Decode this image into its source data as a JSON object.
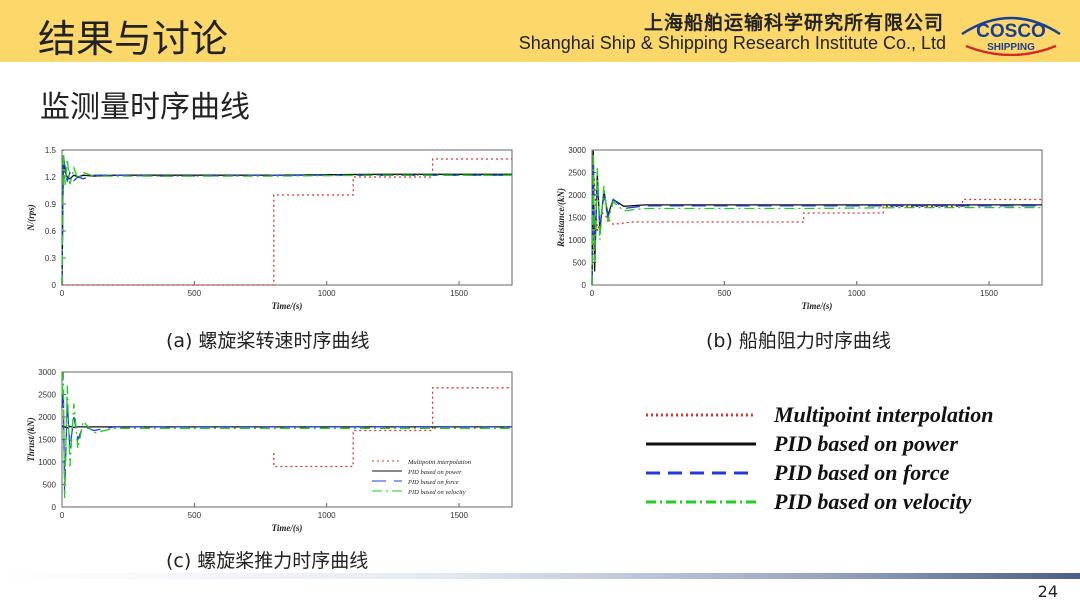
{
  "header": {
    "title": "结果与讨论",
    "org_cn": "上海船舶运输科学研究所有限公司",
    "org_en": "Shanghai Ship & Shipping Research Institute Co., Ltd",
    "logo_top": "COSCO",
    "logo_bottom": "SHIPPING"
  },
  "section_title": "监测量时序曲线",
  "captions": {
    "a": "(a) 螺旋桨转速时序曲线",
    "b": "(b) 船舶阻力时序曲线",
    "c": "(c) 螺旋桨推力时序曲线"
  },
  "legend": {
    "items": [
      {
        "label": "Multipoint interpolation",
        "color": "#e03030",
        "dash": "2,3"
      },
      {
        "label": "PID based on power",
        "color": "#111111",
        "dash": ""
      },
      {
        "label": "PID based on force",
        "color": "#2438e0",
        "dash": "14,8"
      },
      {
        "label": "PID based on velocity",
        "color": "#22cc22",
        "dash": "10,4,2,4"
      }
    ]
  },
  "page_number": "24",
  "chart_data": [
    {
      "id": "a",
      "type": "line",
      "xlabel": "Time/(s)",
      "ylabel": "N/(rps)",
      "xlim": [
        0,
        1700
      ],
      "ylim": [
        0,
        1.5
      ],
      "xticks": [
        0,
        500,
        1000,
        1500
      ],
      "yticks": [
        0,
        0.3,
        0.6,
        0.9,
        1.2,
        1.5
      ],
      "ytick_labels": [
        "0",
        "0.3",
        "0.6",
        "0.9",
        "1.2",
        "1.5"
      ],
      "show_legend": false,
      "series": [
        {
          "name": "Multipoint interpolation",
          "x": [
            0,
            800,
            800,
            1100,
            1100,
            1400,
            1400,
            1700
          ],
          "y": [
            0.0,
            0.0,
            1.0,
            1.0,
            1.2,
            1.2,
            1.4,
            1.4
          ]
        },
        {
          "name": "PID based on power",
          "x": [
            0,
            5,
            12,
            20,
            30,
            45,
            60,
            80,
            120,
            200,
            400,
            800,
            1200,
            1700
          ],
          "y": [
            0.0,
            1.35,
            1.25,
            1.2,
            1.18,
            1.22,
            1.2,
            1.22,
            1.21,
            1.22,
            1.22,
            1.22,
            1.23,
            1.23
          ]
        },
        {
          "name": "PID based on force",
          "x": [
            0,
            5,
            12,
            20,
            30,
            45,
            60,
            80,
            120,
            200,
            400,
            800,
            1200,
            1700
          ],
          "y": [
            0.0,
            1.45,
            1.3,
            1.15,
            1.25,
            1.16,
            1.2,
            1.18,
            1.22,
            1.22,
            1.21,
            1.22,
            1.22,
            1.22
          ]
        },
        {
          "name": "PID based on velocity",
          "x": [
            0,
            5,
            12,
            20,
            30,
            45,
            60,
            80,
            120,
            200,
            400,
            800,
            1200,
            1700
          ],
          "y": [
            0.0,
            1.5,
            1.1,
            1.4,
            1.12,
            1.3,
            1.18,
            1.25,
            1.21,
            1.21,
            1.21,
            1.21,
            1.22,
            1.22
          ]
        }
      ]
    },
    {
      "id": "b",
      "type": "line",
      "xlabel": "Time/(s)",
      "ylabel": "Resistance/(kN)",
      "xlim": [
        0,
        1700
      ],
      "ylim": [
        0,
        3000
      ],
      "xticks": [
        0,
        500,
        1000,
        1500
      ],
      "yticks": [
        0,
        500,
        1000,
        1500,
        2000,
        2500,
        3000
      ],
      "ytick_labels": [
        "0",
        "500",
        "1000",
        "1500",
        "2000",
        "2500",
        "3000"
      ],
      "show_legend": false,
      "series": [
        {
          "name": "Multipoint interpolation",
          "x": [
            0,
            8,
            20,
            40,
            80,
            150,
            300,
            800,
            800,
            1100,
            1100,
            1400,
            1400,
            1700
          ],
          "y": [
            0,
            2400,
            1200,
            1600,
            1350,
            1400,
            1400,
            1400,
            1600,
            1600,
            1750,
            1750,
            1900,
            1900
          ]
        },
        {
          "name": "PID based on power",
          "x": [
            0,
            5,
            10,
            20,
            30,
            45,
            60,
            80,
            120,
            200,
            400,
            800,
            1200,
            1700
          ],
          "y": [
            0,
            3000,
            300,
            2500,
            1200,
            2100,
            1550,
            1900,
            1750,
            1780,
            1780,
            1780,
            1780,
            1780
          ]
        },
        {
          "name": "PID based on force",
          "x": [
            0,
            5,
            10,
            20,
            30,
            45,
            60,
            80,
            120,
            200,
            400,
            800,
            1200,
            1700
          ],
          "y": [
            0,
            2800,
            800,
            2300,
            1300,
            2000,
            1500,
            1900,
            1700,
            1760,
            1760,
            1760,
            1760,
            1760
          ]
        },
        {
          "name": "PID based on velocity",
          "x": [
            0,
            5,
            10,
            20,
            30,
            45,
            60,
            80,
            120,
            200,
            400,
            800,
            1200,
            1700
          ],
          "y": [
            0,
            3000,
            500,
            2600,
            1000,
            2200,
            1400,
            1850,
            1650,
            1700,
            1700,
            1700,
            1720,
            1720
          ]
        }
      ]
    },
    {
      "id": "c",
      "type": "line",
      "xlabel": "Time/(s)",
      "ylabel": "Thrust/(kN)",
      "xlim": [
        0,
        1700
      ],
      "ylim": [
        0,
        3000
      ],
      "xticks": [
        0,
        500,
        1000,
        1500
      ],
      "yticks": [
        0,
        500,
        1000,
        1500,
        2000,
        2500,
        3000
      ],
      "ytick_labels": [
        "0",
        "500",
        "1000",
        "1500",
        "2000",
        "2500",
        "3000"
      ],
      "show_legend": true,
      "series": [
        {
          "name": "Multipoint interpolation",
          "x": [
            800,
            800,
            1100,
            1100,
            1400,
            1400,
            1700
          ],
          "y": [
            1200,
            900,
            900,
            1700,
            1700,
            2650,
            2650
          ]
        },
        {
          "name": "PID based on power",
          "x": [
            0,
            5,
            10,
            20,
            30,
            45,
            60,
            80,
            120,
            200,
            400,
            800,
            1200,
            1700
          ],
          "y": [
            1780,
            1800,
            1780,
            1760,
            1790,
            1770,
            1780,
            1780,
            1780,
            1780,
            1780,
            1780,
            1780,
            1780
          ]
        },
        {
          "name": "PID based on force",
          "x": [
            0,
            5,
            10,
            20,
            30,
            45,
            60,
            80,
            120,
            200,
            400,
            800,
            1200,
            1700
          ],
          "y": [
            2200,
            2600,
            300,
            2300,
            1300,
            2000,
            1500,
            1800,
            1700,
            1780,
            1780,
            1780,
            1780,
            1780
          ]
        },
        {
          "name": "PID based on velocity",
          "x": [
            0,
            5,
            10,
            20,
            30,
            45,
            60,
            80,
            120,
            200,
            400,
            800,
            1200,
            1700
          ],
          "y": [
            2500,
            3000,
            200,
            2700,
            900,
            2300,
            1300,
            1900,
            1650,
            1750,
            1750,
            1750,
            1750,
            1750
          ]
        }
      ]
    }
  ]
}
